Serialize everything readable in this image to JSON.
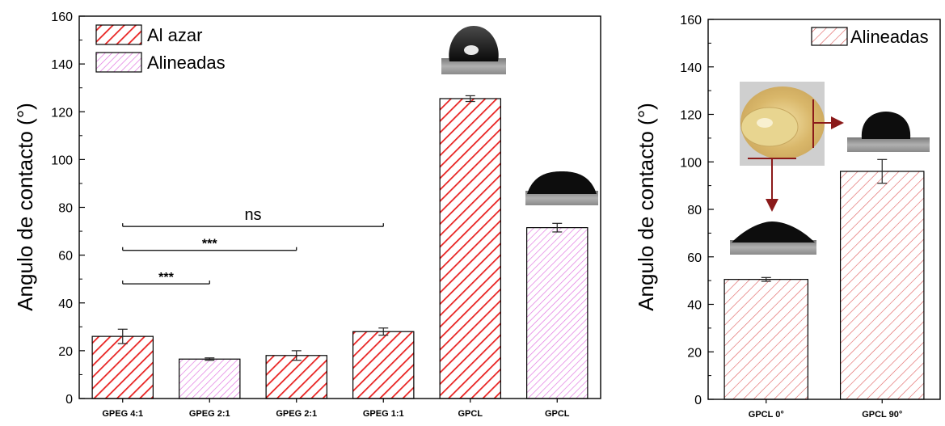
{
  "chart_data": [
    {
      "type": "bar",
      "ylabel": "Angulo de contacto (°)",
      "ylim": [
        0,
        160
      ],
      "yticks": [
        "0",
        "20",
        "40",
        "60",
        "80",
        "100",
        "120",
        "140",
        "160"
      ],
      "categories": [
        "GPEG 4:1",
        "GPEG 2:1",
        "GPEG 2:1",
        "GPEG 1:1",
        "GPCL",
        "GPCL"
      ],
      "values": [
        26,
        16.5,
        18,
        28,
        125.5,
        71.5
      ],
      "errors": [
        3,
        0.5,
        2,
        1.5,
        1.2,
        1.8
      ],
      "groups": [
        "Al azar",
        "Alineadas",
        "Al azar",
        "Al azar",
        "Al azar",
        "Alineadas"
      ],
      "legend": [
        {
          "name": "Al azar",
          "color": "#e8201f",
          "pattern": "diagonal-hatch"
        },
        {
          "name": "Alineadas",
          "color": "#e070e0",
          "pattern": "diagonal-hatch"
        }
      ],
      "legend_position": "top-left",
      "significance": [
        {
          "from": 0,
          "to": 1,
          "label": "***",
          "y": 48
        },
        {
          "from": 0,
          "to": 2,
          "label": "***",
          "y": 62
        },
        {
          "from": 0,
          "to": 3,
          "label": "ns",
          "y": 72
        }
      ]
    },
    {
      "type": "bar",
      "ylabel": "Angulo de contacto (°)",
      "ylim": [
        0,
        160
      ],
      "yticks": [
        "0",
        "20",
        "40",
        "60",
        "80",
        "100",
        "120",
        "140",
        "160"
      ],
      "categories": [
        "GPCL 0°",
        "GPCL  90°"
      ],
      "values": [
        50.5,
        96
      ],
      "errors": [
        0.8,
        5
      ],
      "legend": [
        {
          "name": "Alineadas",
          "color": "#e05a5a",
          "pattern": "diagonal-hatch"
        }
      ],
      "legend_position": "top-right"
    }
  ]
}
